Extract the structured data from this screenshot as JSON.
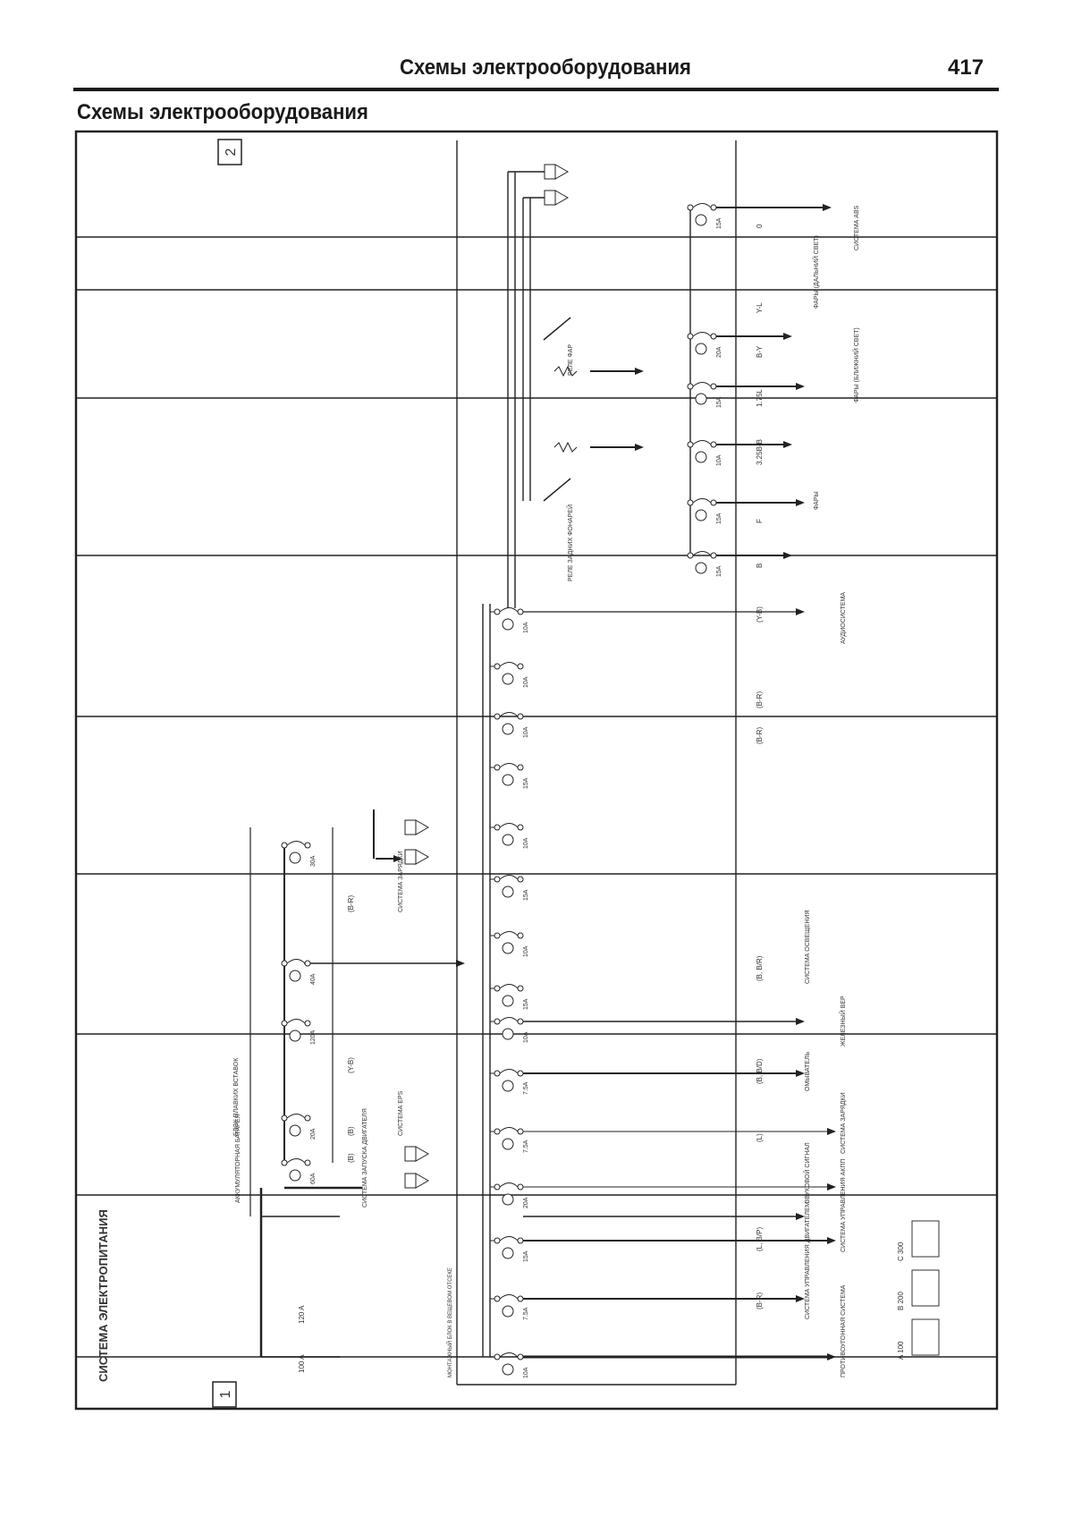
{
  "header": {
    "title": "Схемы электрооборудования",
    "page_number": "417"
  },
  "section_title": "Схемы электрооборудования",
  "diagram": {
    "system_title": "СИСТЕМА ЭЛЕКТРОПИТАНИЯ",
    "sheet_markers": [
      "1",
      "2"
    ],
    "battery_label": "АККУМУЛЯТОРНАЯ БАТАРЕЯ",
    "fuse_box_label": "БЛОК ПЛАВКИХ ВСТАВОК",
    "junction_block_label": "МОНТАЖНЫЙ БЛОК В ВЕЩЕВОМ ОТСЕКЕ",
    "main_fuses": [
      "100 A",
      "120 A"
    ],
    "left_fuses": [
      "30A",
      "40A",
      "120A",
      "20A",
      "60A"
    ],
    "left_wires": [
      "(B-R)",
      "(Y-B)",
      "(B)",
      "(B)"
    ],
    "left_targets": [
      "СИСТЕМА ЗАПУСКА ДВИГАТЕЛЯ",
      "СИСТЕМА EPS",
      "СИСТЕМА ЗАРЯДКИ"
    ],
    "junction_fuses": [
      "10A",
      "7.5A",
      "15A",
      "20A",
      "7.5A",
      "7.5A",
      "10A",
      "15A",
      "10A",
      "15A",
      "10A",
      "15A",
      "10A",
      "10A",
      "10A"
    ],
    "junction_wires": [
      "(B-R)",
      "(L, B/P)",
      "(L)",
      "(B, B/D)",
      "(B, B/R)",
      "(B-R)",
      "(B-R)",
      "(Y-B)"
    ],
    "junction_targets": [
      "ПРОТИВОУГОННАЯ СИСТЕМА",
      "СИСТЕМА УПРАВЛЕНИЯ ДВИГАТЕЛЕМ",
      "СИСТЕМА УПРАВЛЕНИЯ АКПП",
      "ЗВУКОВОЙ СИГНАЛ",
      "СИСТЕМА ЗАРЯДКИ",
      "ОМЫВАТЕЛЬ",
      "ЖЕЛЕЗНЫЙ ВЕР",
      "СИСТЕМА ОСВЕЩЕНИЯ",
      "АУДИОСИСТЕМА"
    ],
    "relay_labels": [
      "РЕЛЕ ЗАДНИХ ФОНАРЕЙ",
      "РЕЛЕ ФАР"
    ],
    "upper_fuses": [
      "15A",
      "20A",
      "15A",
      "10A",
      "15A",
      "15A"
    ],
    "upper_wires": [
      "0",
      "Y-L",
      "B-Y",
      "1.75L",
      "3.25B-B",
      "F",
      "B"
    ],
    "upper_targets": [
      "СИСТЕМА ABS",
      "ФАРЫ (ДАЛЬНИЙ СВЕТ)",
      "ФАРЫ (БЛИЖНИЙ СВЕТ)",
      "ФАРЫ"
    ],
    "legend_codes": [
      "A 100",
      "B 200",
      "C 300"
    ]
  },
  "colors": {
    "ink": "#1a1a1a",
    "paper": "#ffffff"
  }
}
